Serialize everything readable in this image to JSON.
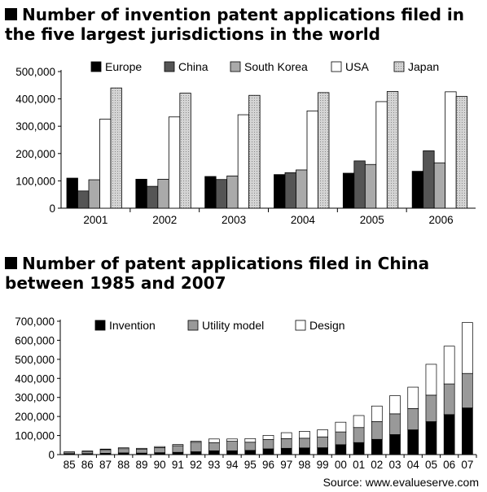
{
  "charts": [
    {
      "title": "Number of invention patent applications filed in the five largest jurisdictions in the world",
      "chart_data": {
        "type": "bar",
        "categories": [
          "2001",
          "2002",
          "2003",
          "2004",
          "2005",
          "2006"
        ],
        "series": [
          {
            "name": "Europe",
            "values": [
              110000,
              106000,
              116000,
              123000,
              128000,
              135000
            ],
            "color": "#000000"
          },
          {
            "name": "China",
            "values": [
              63000,
              80000,
              105000,
              130000,
              173000,
              210000
            ],
            "color": "#555555"
          },
          {
            "name": "South Korea",
            "values": [
              104000,
              106000,
              118000,
              140000,
              160000,
              166000
            ],
            "color": "#aaaaaa"
          },
          {
            "name": "USA",
            "values": [
              326000,
              334000,
              342000,
              356000,
              390000,
              426000
            ],
            "color": "#ffffff"
          },
          {
            "name": "Japan",
            "values": [
              440000,
              421000,
              413000,
              423000,
              427000,
              409000
            ],
            "color": "#cccccc",
            "pattern": "dotted"
          }
        ],
        "yticks": [
          "0",
          "100,000",
          "200,000",
          "300,000",
          "400,000",
          "500,000"
        ],
        "ylim": [
          0,
          500000
        ],
        "legend_position": "top",
        "grid": false
      }
    },
    {
      "title": "Number of patent applications filed in China between 1985 and 2007",
      "chart_data": {
        "type": "bar",
        "stacked": true,
        "categories": [
          "85",
          "86",
          "87",
          "88",
          "89",
          "90",
          "91",
          "92",
          "93",
          "94",
          "95",
          "96",
          "97",
          "98",
          "99",
          "00",
          "01",
          "02",
          "03",
          "04",
          "05",
          "06",
          "07"
        ],
        "series": [
          {
            "name": "Invention",
            "values": [
              5000,
              5000,
              7000,
              9000,
              8000,
              10000,
              12000,
              15000,
              20000,
              20000,
              22000,
              30000,
              33000,
              35000,
              36000,
              52000,
              63000,
              80000,
              105000,
              130000,
              173000,
              210000,
              245000
            ],
            "color": "#000000"
          },
          {
            "name": "Utility model",
            "values": [
              9000,
              12000,
              19000,
              22000,
              21000,
              27000,
              35000,
              50000,
              43000,
              50000,
              43000,
              49000,
              51000,
              51000,
              57000,
              67000,
              79000,
              93000,
              109000,
              112000,
              139000,
              161000,
              181000
            ],
            "color": "#999999"
          },
          {
            "name": "Design",
            "values": [
              100,
              2000,
              3000,
              5000,
              4000,
              5000,
              6000,
              5000,
              19000,
              12000,
              19000,
              22000,
              31000,
              36000,
              37000,
              51000,
              63000,
              82000,
              95000,
              112000,
              162000,
              198000,
              267000
            ],
            "color": "#ffffff"
          }
        ],
        "yticks": [
          "0",
          "100,000",
          "200,000",
          "300,000",
          "400,000",
          "500,000",
          "600,000",
          "700,000"
        ],
        "ylim": [
          0,
          700000
        ],
        "legend_position": "top",
        "grid": false
      }
    }
  ],
  "source": "Source: www.evalueserve.com"
}
